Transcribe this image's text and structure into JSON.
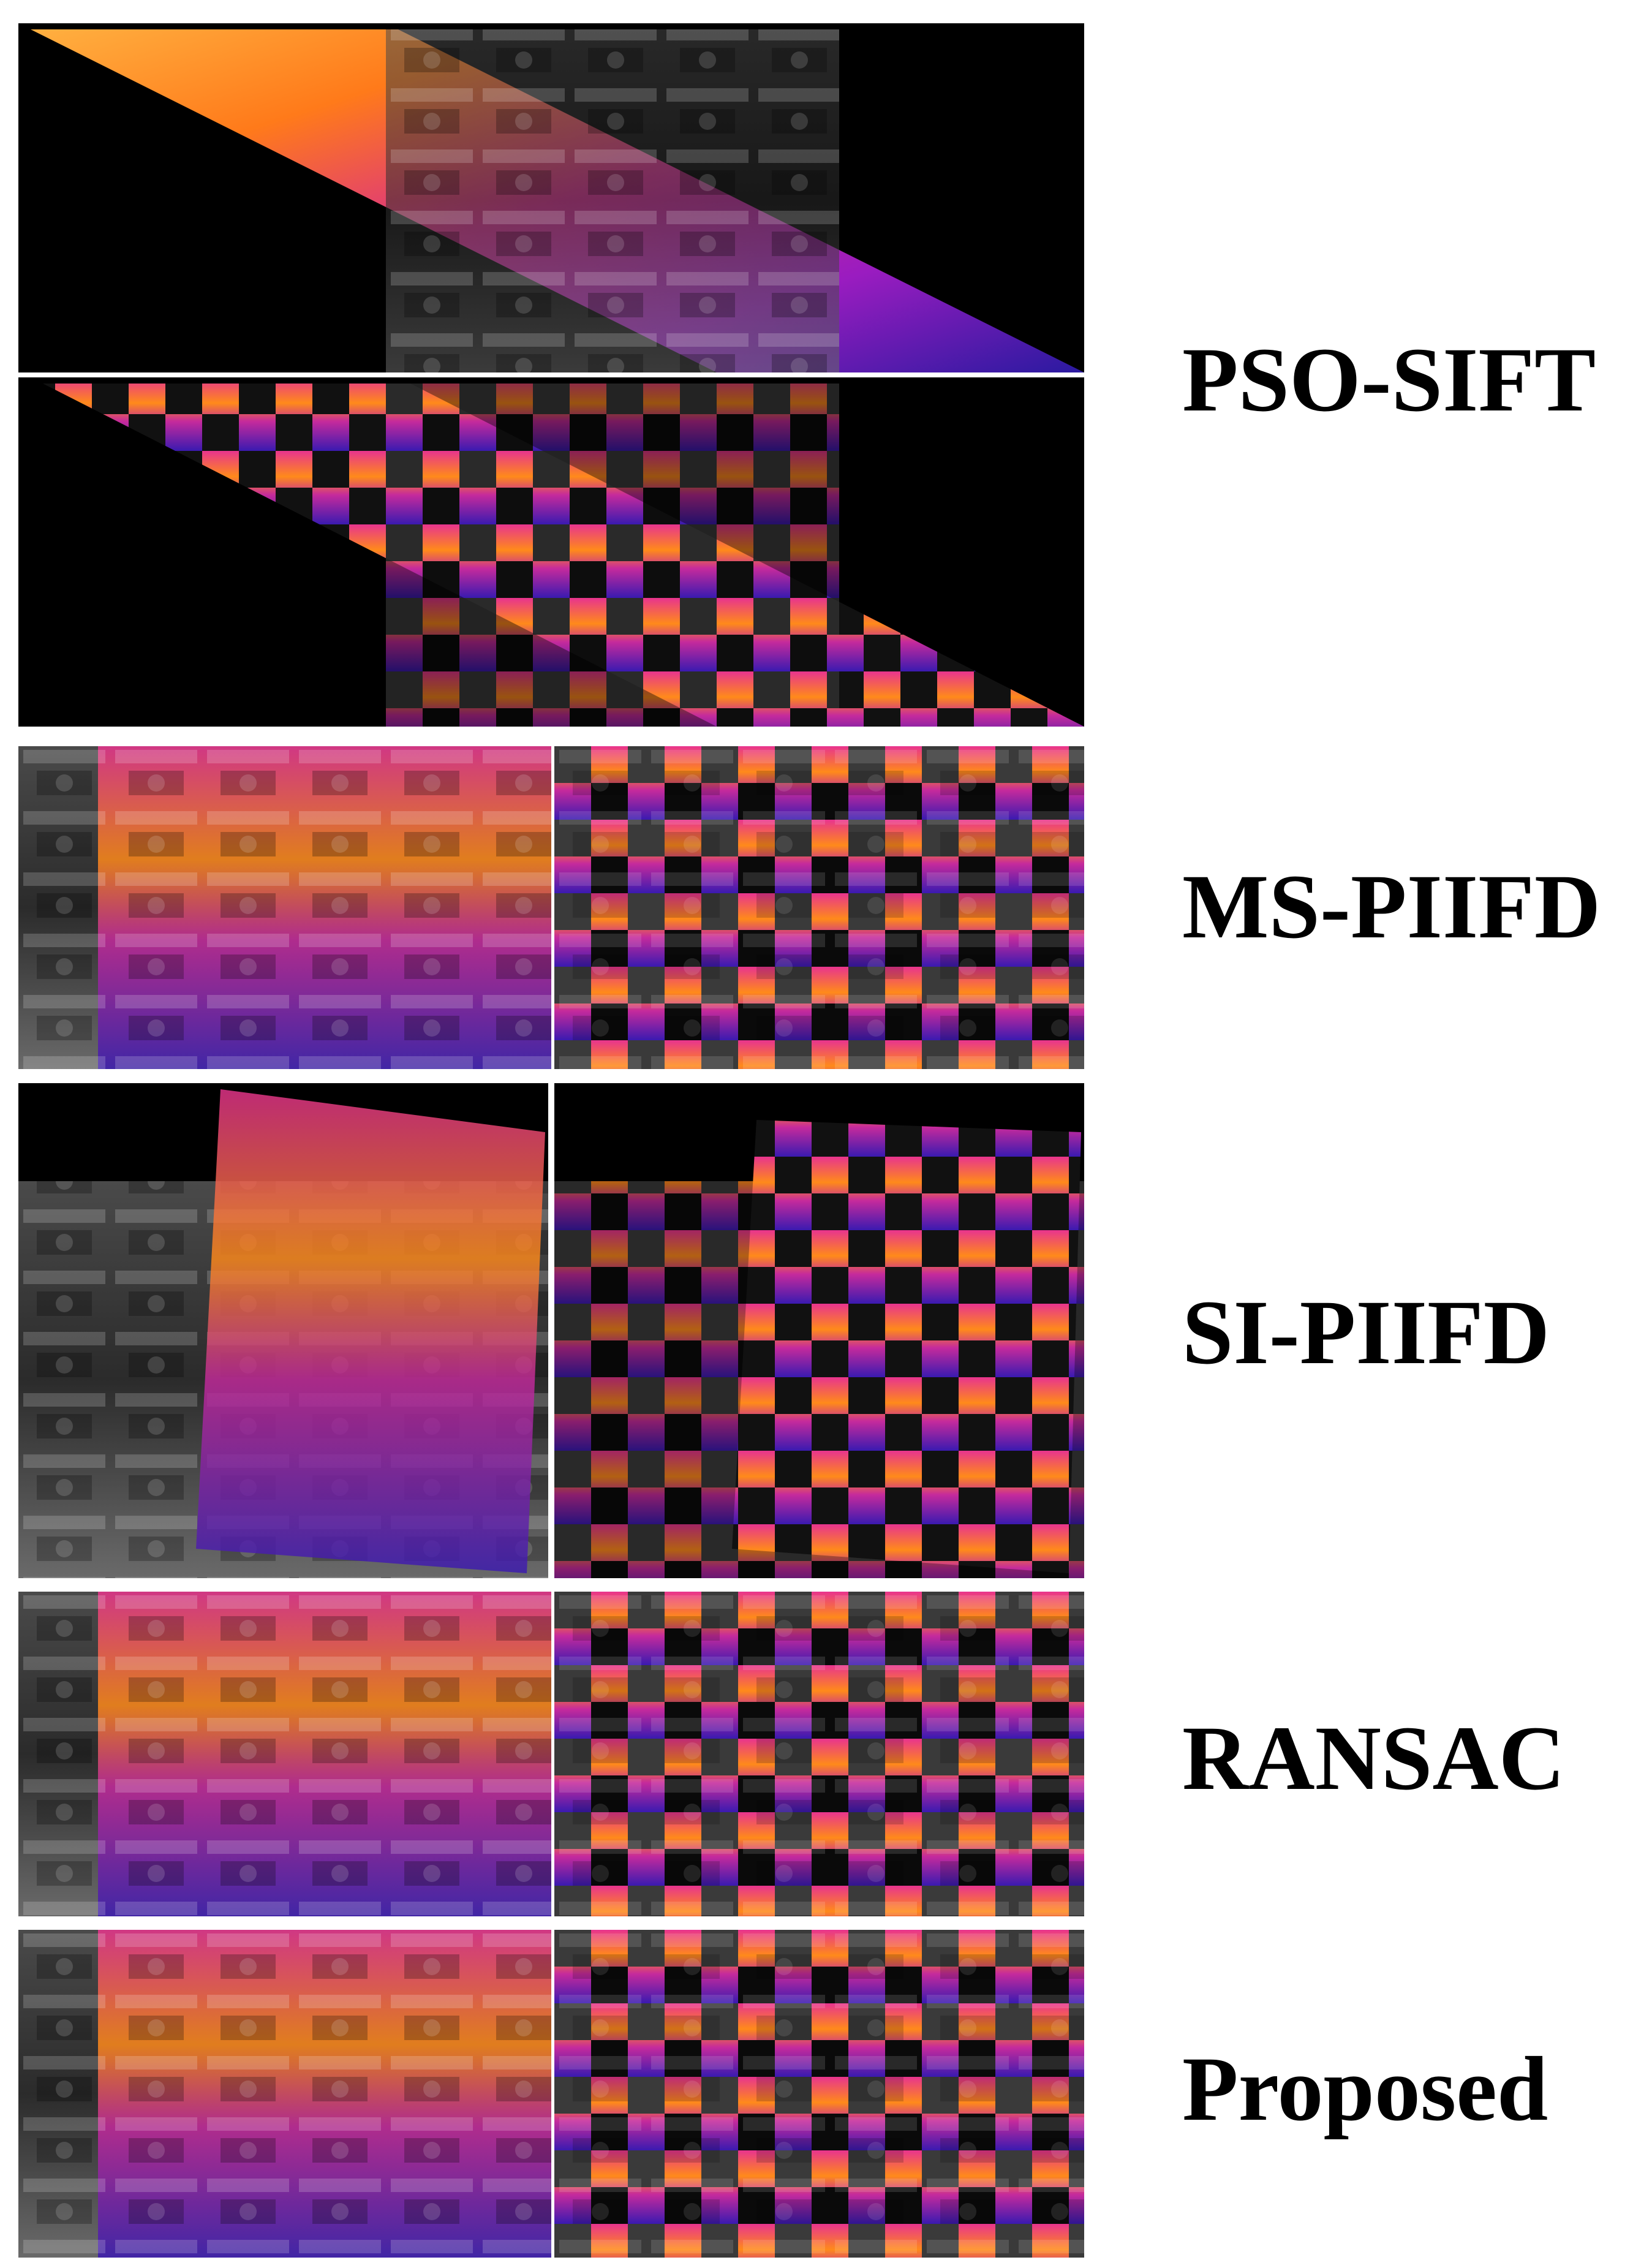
{
  "rows": [
    {
      "method": "PSO-SIFT"
    },
    {
      "method": "MS-PIIFD"
    },
    {
      "method": "SI-PIIFD"
    },
    {
      "method": "RANSAC"
    },
    {
      "method": "Proposed"
    }
  ],
  "colors": {
    "thermal_hot": "#ff8a1a",
    "thermal_warm": "#e0338f",
    "thermal_mid": "#a51fb8",
    "thermal_cold": "#3a1aa0",
    "gray_dark": "#2e2e2e",
    "gray_light": "#9a9a9a",
    "background": "#000000"
  }
}
